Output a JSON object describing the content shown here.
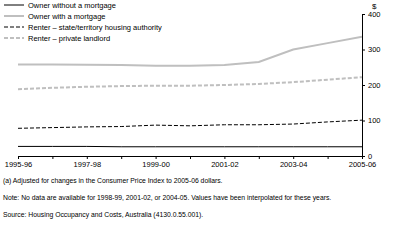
{
  "chart_data": {
    "type": "line",
    "y_label": "$",
    "categories": [
      "1995-96",
      null,
      "1997-98",
      null,
      "1999-00",
      null,
      "2001-02",
      null,
      "2003-04",
      null,
      "2005-06"
    ],
    "series": [
      {
        "name": "Owner without a mortgage",
        "color": "#000000",
        "line_style": "solid",
        "values": [
          27,
          27,
          27,
          26,
          26,
          26,
          26,
          26,
          26,
          26,
          26
        ]
      },
      {
        "name": "Owner with a mortgage",
        "color": "#bfbfbf",
        "line_style": "solid",
        "values": [
          258,
          258,
          257,
          256,
          254,
          254,
          256,
          265,
          300,
          318,
          336
        ]
      },
      {
        "name": "Renter – state/territory housing authority",
        "color": "#000000",
        "line_style": "dashed",
        "values": [
          78,
          80,
          82,
          83,
          87,
          85,
          88,
          88,
          90,
          96,
          101
        ]
      },
      {
        "name": "Renter – private landlord",
        "color": "#bfbfbf",
        "line_style": "dashed",
        "values": [
          188,
          192,
          195,
          197,
          198,
          198,
          200,
          203,
          208,
          215,
          222
        ]
      }
    ],
    "ylim": [
      0,
      400
    ],
    "yticks": [
      0,
      100,
      200,
      300,
      400
    ],
    "grid": false,
    "legend": "top-left",
    "notes": [
      "(a) Adjusted for changes in the Consumer Price Index to 2005-06 dollars.",
      "Note: No data are available for 1998-99, 2001-02, or 2004-05. Values have been interpolated for these years.",
      "Source: Housing Occupancy and Costs, Australia (4130.0.55.001)."
    ]
  }
}
